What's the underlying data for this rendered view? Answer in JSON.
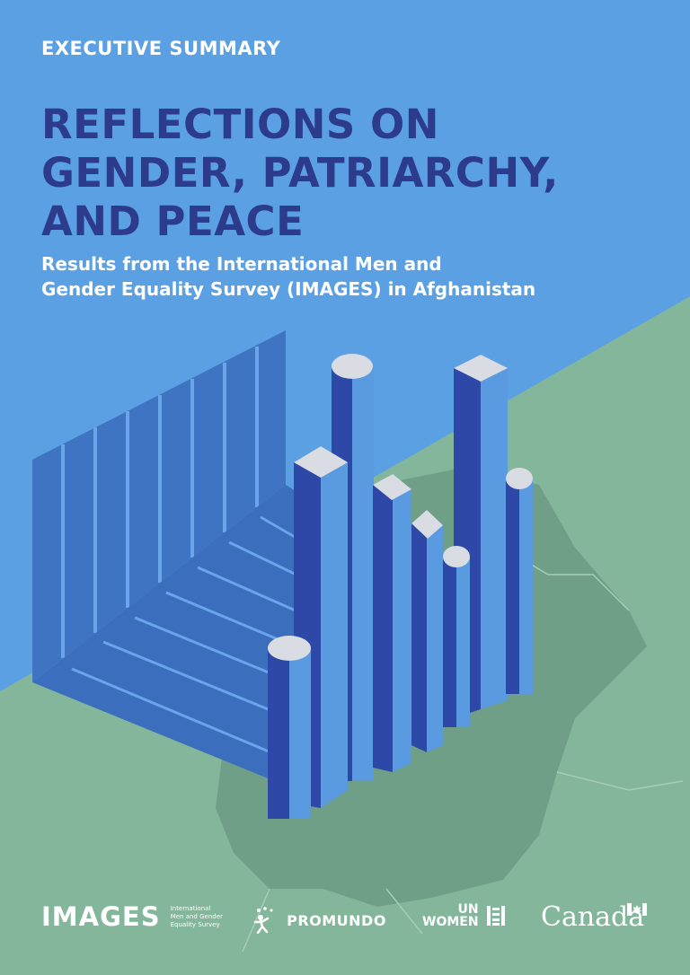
{
  "cover": {
    "eyebrow": "EXECUTIVE SUMMARY",
    "title_lines": [
      "REFLECTIONS ON",
      "GENDER, PATRIARCHY,",
      "AND PEACE"
    ],
    "subtitle_lines": [
      "Results from the International Men and",
      "Gender Equality Survey (IMAGES) in Afghanistan"
    ],
    "colors": {
      "sky": "#5aa0e3",
      "ground": "#83b69a",
      "map_shadow": "#6f9f86",
      "title": "#2c3b8c",
      "bar_light": "#5a9ae0",
      "bar_dark": "#2e48a8",
      "bar_top": "#d9dde3"
    }
  },
  "logos": {
    "images": {
      "word": "IMAGES",
      "tagline": [
        "International",
        "Men and Gender",
        "Equality Survey"
      ]
    },
    "promundo": {
      "word": "PROMUNDO",
      "icon": "promundo-figure-icon"
    },
    "unwomen": {
      "lines": [
        "UN",
        "WOMEN"
      ],
      "icon": "un-women-emblem-icon"
    },
    "canada": {
      "word": "Canada",
      "icon": "canada-flag-icon"
    }
  }
}
